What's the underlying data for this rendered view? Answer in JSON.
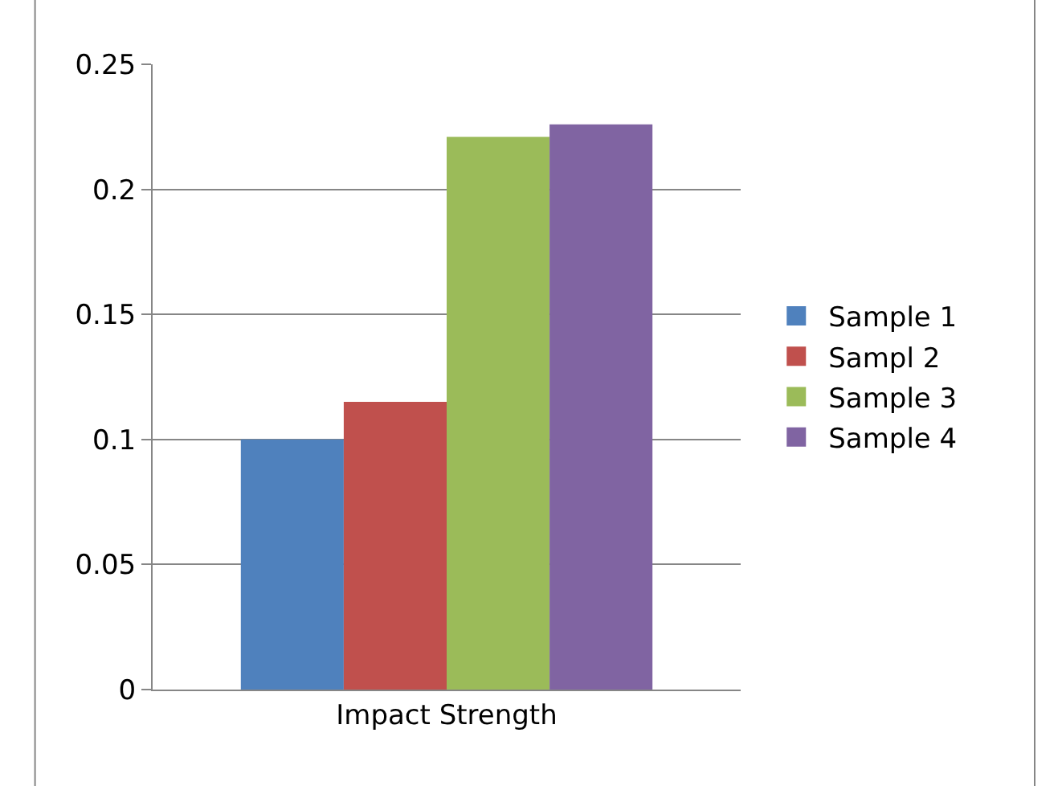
{
  "chart_data": {
    "type": "bar",
    "categories": [
      "Impact Strength"
    ],
    "series": [
      {
        "name": "Sample 1",
        "color": "#4f81bd",
        "values": [
          0.1
        ]
      },
      {
        "name": "Sampl 2",
        "color": "#c0504d",
        "values": [
          0.115
        ]
      },
      {
        "name": "Sample 3",
        "color": "#9bbb59",
        "values": [
          0.221
        ]
      },
      {
        "name": "Sample 4",
        "color": "#8064a2",
        "values": [
          0.226
        ]
      }
    ],
    "ylim": [
      0,
      0.25
    ],
    "yticks": [
      0,
      0.05,
      0.1,
      0.15,
      0.2,
      0.25
    ],
    "grid": "y",
    "legend": "right"
  }
}
